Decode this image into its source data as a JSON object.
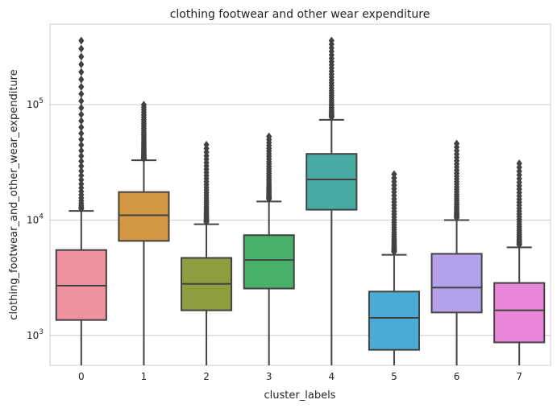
{
  "chart_data": {
    "type": "box",
    "title": "clothing footwear and other wear expenditure",
    "xlabel": "cluster_labels",
    "ylabel": "clothing_footwear_and_other_wear_expenditure",
    "yscale": "log",
    "ylim": [
      550,
      500000
    ],
    "yticks": [
      {
        "value": 1000,
        "base": "10",
        "exp": "3"
      },
      {
        "value": 10000,
        "base": "10",
        "exp": "4"
      },
      {
        "value": 100000,
        "base": "10",
        "exp": "5"
      }
    ],
    "grid": "horizontal",
    "categories": [
      "0",
      "1",
      "2",
      "3",
      "4",
      "5",
      "6",
      "7"
    ],
    "boxes": [
      {
        "category": "0",
        "color": "#ee929f",
        "whisker_low": 550,
        "q1": 1360,
        "median": 2700,
        "q3": 5500,
        "whisker_high": 12000,
        "outlier_low": 12500,
        "outlier_high": 360000
      },
      {
        "category": "1",
        "color": "#d49845",
        "whisker_low": 550,
        "q1": 6600,
        "median": 11000,
        "q3": 17500,
        "whisker_high": 33000,
        "outlier_low": 34000,
        "outlier_high": 100000
      },
      {
        "category": "2",
        "color": "#8e9e3e",
        "whisker_low": 550,
        "q1": 1650,
        "median": 2800,
        "q3": 4700,
        "whisker_high": 9200,
        "outlier_low": 9600,
        "outlier_high": 45000
      },
      {
        "category": "3",
        "color": "#47b06a",
        "whisker_low": 550,
        "q1": 2550,
        "median": 4500,
        "q3": 7400,
        "whisker_high": 14500,
        "outlier_low": 15200,
        "outlier_high": 53000
      },
      {
        "category": "4",
        "color": "#48aca4",
        "whisker_low": 550,
        "q1": 12300,
        "median": 22500,
        "q3": 37500,
        "whisker_high": 74000,
        "outlier_low": 78000,
        "outlier_high": 360000
      },
      {
        "category": "5",
        "color": "#4aacd6",
        "whisker_low": 550,
        "q1": 750,
        "median": 1420,
        "q3": 2400,
        "whisker_high": 5000,
        "outlier_low": 5300,
        "outlier_high": 25000
      },
      {
        "category": "6",
        "color": "#b3a1ec",
        "whisker_low": 550,
        "q1": 1580,
        "median": 2600,
        "q3": 5100,
        "whisker_high": 10000,
        "outlier_low": 10500,
        "outlier_high": 46000
      },
      {
        "category": "7",
        "color": "#e887d8",
        "whisker_low": 550,
        "q1": 870,
        "median": 1650,
        "q3": 2850,
        "whisker_high": 5800,
        "outlier_low": 6100,
        "outlier_high": 31000
      }
    ]
  }
}
